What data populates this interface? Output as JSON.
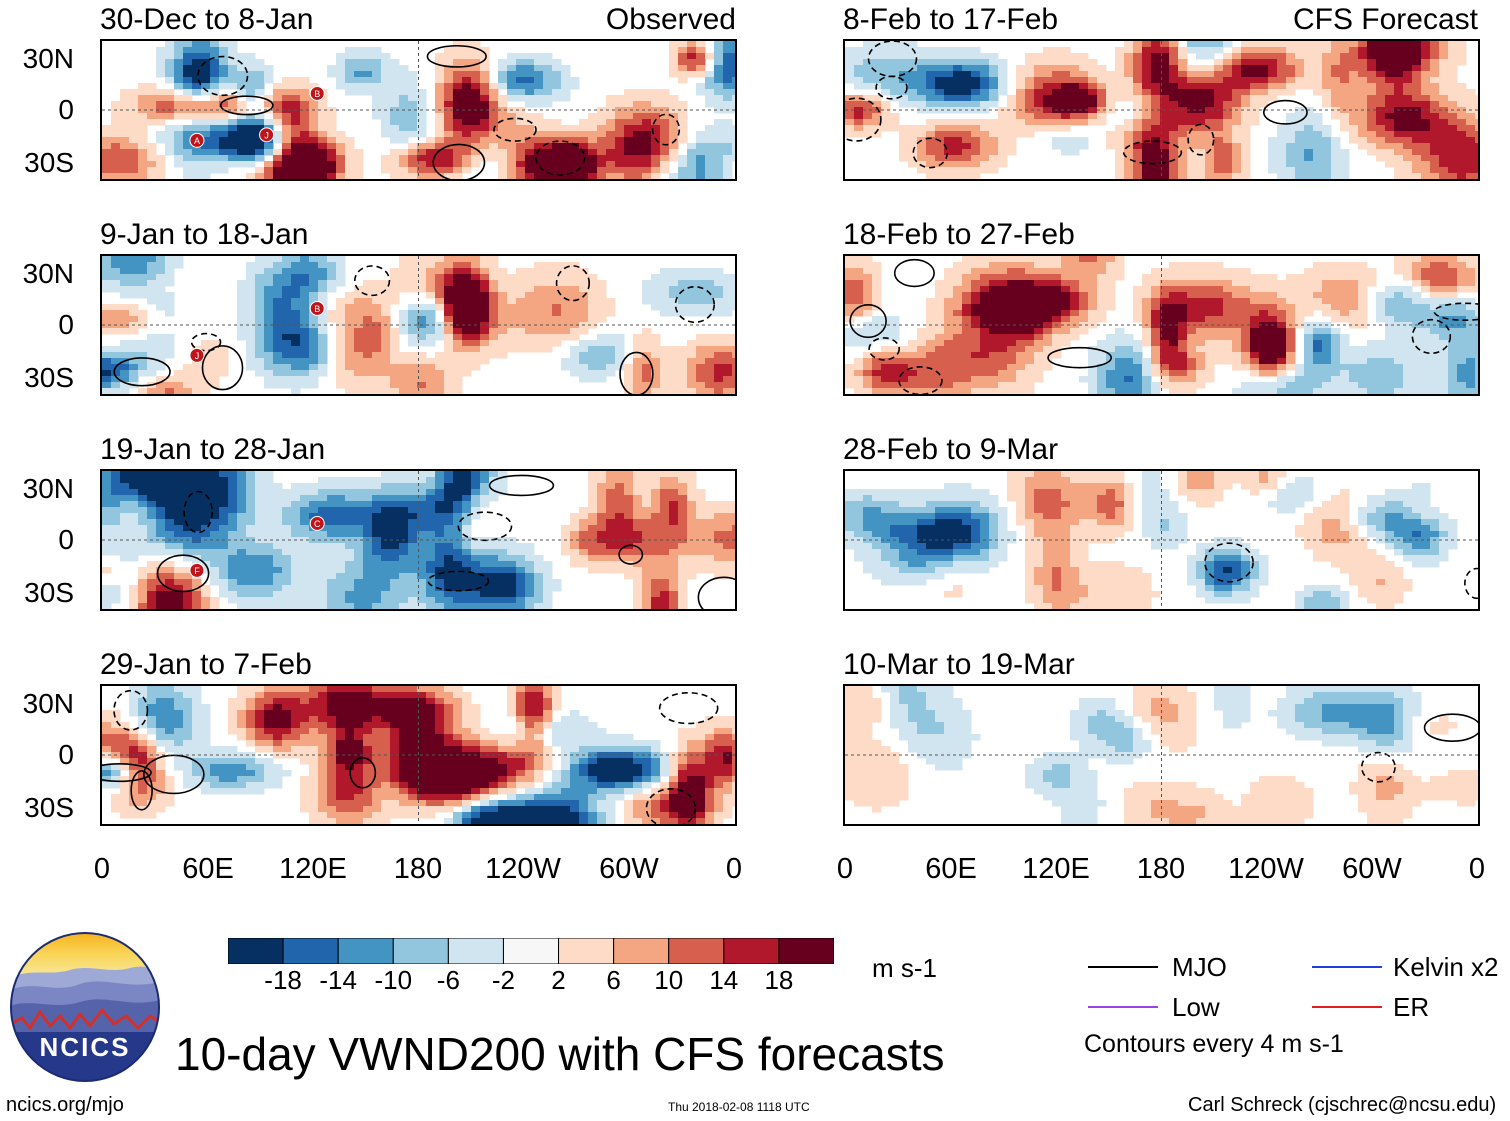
{
  "chart_data": {
    "type": "heatmap",
    "title": "10-day VWND200 with CFS forecasts",
    "variable": "VWND200",
    "units": "m s-1",
    "y_ticks": [
      "30N",
      "0",
      "30S"
    ],
    "x_ticks": [
      "0",
      "60E",
      "120E",
      "180",
      "120W",
      "60W",
      "0"
    ],
    "columns": [
      {
        "label": "Observed",
        "panels": [
          {
            "title": "30-Dec to 8-Jan",
            "storms": [
              "B",
              "A",
              "J"
            ]
          },
          {
            "title": "9-Jan to 18-Jan",
            "storms": [
              "B",
              "J"
            ]
          },
          {
            "title": "19-Jan to 28-Jan",
            "storms": [
              "C",
              "F"
            ]
          },
          {
            "title": "29-Jan to 7-Feb",
            "storms": []
          }
        ]
      },
      {
        "label": "CFS Forecast",
        "panels": [
          {
            "title": "8-Feb to 17-Feb",
            "storms": []
          },
          {
            "title": "18-Feb to 27-Feb",
            "storms": []
          },
          {
            "title": "28-Feb to 9-Mar",
            "storms": []
          },
          {
            "title": "10-Mar to 19-Mar",
            "storms": []
          }
        ]
      }
    ],
    "colorbar": {
      "ticks": [
        "-18",
        "-14",
        "-10",
        "-6",
        "-2",
        "2",
        "6",
        "10",
        "14",
        "18"
      ],
      "colors": [
        "#053061",
        "#2166ac",
        "#4393c3",
        "#92c5de",
        "#d1e5f0",
        "#f7f7f7",
        "#fddbc7",
        "#f4a582",
        "#d6604d",
        "#b2182b",
        "#67001f"
      ],
      "units_label": "m s-1"
    },
    "legend": [
      {
        "label": "MJO",
        "color": "#000000"
      },
      {
        "label": "Kelvin x2",
        "color": "#1f3fe0"
      },
      {
        "label": "Low",
        "color": "#9b44e6"
      },
      {
        "label": "ER",
        "color": "#e02020"
      }
    ],
    "contour_note": "Contours every 4 m s-1"
  },
  "branding": {
    "logo_text": "NCICS",
    "site": "ncics.org/mjo",
    "timestamp": "Thu 2018-02-08 1118 UTC",
    "author": "Carl Schreck (cjschrec@ncsu.edu)"
  }
}
